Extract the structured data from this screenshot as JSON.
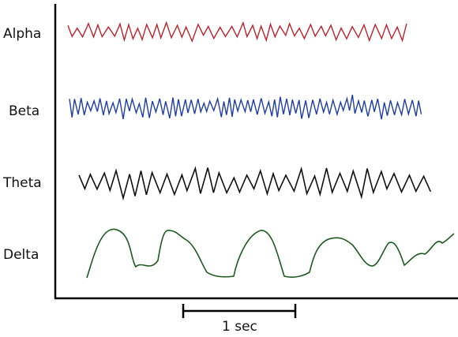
{
  "diagram": {
    "waves": [
      {
        "name": "Alpha",
        "color": "#c0222a"
      },
      {
        "name": "Beta",
        "color": "#1f3ea8"
      },
      {
        "name": "Theta",
        "color": "#111111"
      },
      {
        "name": "Delta",
        "color": "#1d5a1f"
      }
    ],
    "scale_bar": {
      "label": "1 sec"
    },
    "axis_color": "#000000"
  }
}
